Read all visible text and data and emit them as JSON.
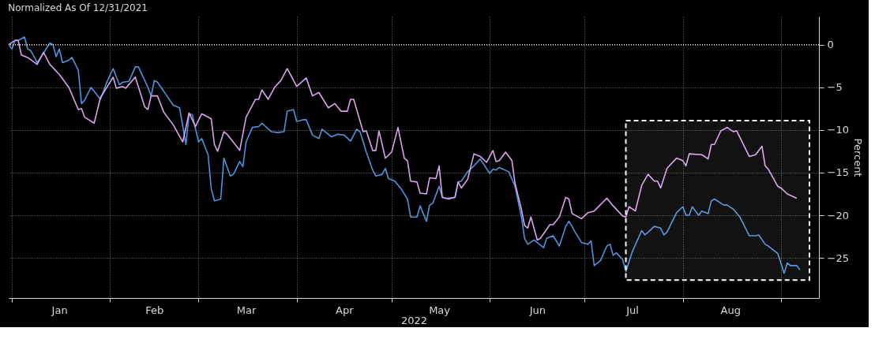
{
  "chart_data": {
    "type": "line",
    "title": "Normalized As Of 12/31/2021",
    "xlabel": "2022",
    "ylabel": "Percent",
    "xlim": [
      "2021-12-31",
      "2022-09-13"
    ],
    "xticks": [
      {
        "value": "2022-01-01",
        "label": null
      },
      {
        "value": "2022-01-16",
        "label": "Jan"
      },
      {
        "value": "2022-02-01",
        "label": null
      },
      {
        "value": "2022-02-15",
        "label": "Feb"
      },
      {
        "value": "2022-03-01",
        "label": null
      },
      {
        "value": "2022-03-16",
        "label": "Mar"
      },
      {
        "value": "2022-04-01",
        "label": null
      },
      {
        "value": "2022-04-16",
        "label": "Apr"
      },
      {
        "value": "2022-05-01",
        "label": null
      },
      {
        "value": "2022-05-16",
        "label": "May"
      },
      {
        "value": "2022-06-01",
        "label": null
      },
      {
        "value": "2022-06-16",
        "label": "Jun"
      },
      {
        "value": "2022-07-01",
        "label": null
      },
      {
        "value": "2022-07-16",
        "label": "Jul"
      },
      {
        "value": "2022-08-01",
        "label": null
      },
      {
        "value": "2022-08-16",
        "label": "Aug"
      },
      {
        "value": "2022-09-01",
        "label": null
      }
    ],
    "ylim": [
      -29.7,
      3.3
    ],
    "yticks": [
      0,
      -5,
      -10,
      -15,
      -20,
      -25
    ],
    "grid": true,
    "marker": "none",
    "line_style": "solid",
    "ref_lines": [
      {
        "axis": "y",
        "value": 0,
        "color": "#ffffff",
        "line_style": "dotted"
      }
    ],
    "bands": [
      {
        "axis": "x",
        "from": "2022-07-14",
        "to": "2022-09-10",
        "color": "#ffffff"
      }
    ],
    "series": [
      {
        "color": "#4f92dd",
        "x": [
          "2021-12-31",
          "2022-01-01",
          "2022-01-02",
          "2022-01-03",
          "2022-01-05",
          "2022-01-06",
          "2022-01-07",
          "2022-01-09",
          "2022-01-11",
          "2022-01-13",
          "2022-01-14",
          "2022-01-15",
          "2022-01-16",
          "2022-01-17",
          "2022-01-19",
          "2022-01-20",
          "2022-01-22",
          "2022-01-23",
          "2022-01-24",
          "2022-01-26",
          "2022-01-29",
          "2022-01-31",
          "2022-02-02",
          "2022-02-04",
          "2022-02-05",
          "2022-02-07",
          "2022-02-09",
          "2022-02-10",
          "2022-02-13",
          "2022-02-14",
          "2022-02-15",
          "2022-02-16",
          "2022-02-19",
          "2022-02-21",
          "2022-02-23",
          "2022-02-25",
          "2022-02-26",
          "2022-02-27",
          "2022-03-01",
          "2022-03-02",
          "2022-03-04",
          "2022-03-05",
          "2022-03-06",
          "2022-03-08",
          "2022-03-09",
          "2022-03-11",
          "2022-03-12",
          "2022-03-14",
          "2022-03-15",
          "2022-03-16",
          "2022-03-18",
          "2022-03-20",
          "2022-03-21",
          "2022-03-24",
          "2022-03-26",
          "2022-03-28",
          "2022-03-29",
          "2022-03-31",
          "2022-04-01",
          "2022-04-03",
          "2022-04-04",
          "2022-04-06",
          "2022-04-08",
          "2022-04-09",
          "2022-04-12",
          "2022-04-14",
          "2022-04-16",
          "2022-04-18",
          "2022-04-20",
          "2022-04-21",
          "2022-04-23",
          "2022-04-25",
          "2022-04-26",
          "2022-04-28",
          "2022-04-29",
          "2022-04-30",
          "2022-05-02",
          "2022-05-04",
          "2022-05-06",
          "2022-05-07",
          "2022-05-09",
          "2022-05-10",
          "2022-05-12",
          "2022-05-13",
          "2022-05-14",
          "2022-05-16",
          "2022-05-17",
          "2022-05-18",
          "2022-05-21",
          "2022-05-22",
          "2022-05-23",
          "2022-05-25",
          "2022-05-27",
          "2022-05-29",
          "2022-06-01",
          "2022-06-02",
          "2022-06-03",
          "2022-06-04",
          "2022-06-07",
          "2022-06-09",
          "2022-06-11",
          "2022-06-12",
          "2022-06-13",
          "2022-06-15",
          "2022-06-18",
          "2022-06-19",
          "2022-06-21",
          "2022-06-23",
          "2022-06-25",
          "2022-06-26",
          "2022-06-27",
          "2022-06-28",
          "2022-06-30",
          "2022-07-02",
          "2022-07-03",
          "2022-07-04",
          "2022-07-06",
          "2022-07-08",
          "2022-07-09",
          "2022-07-10",
          "2022-07-11",
          "2022-07-13",
          "2022-07-14",
          "2022-07-16",
          "2022-07-19",
          "2022-07-20",
          "2022-07-21",
          "2022-07-23",
          "2022-07-25",
          "2022-07-26",
          "2022-07-27",
          "2022-07-30",
          "2022-08-01",
          "2022-08-02",
          "2022-08-03",
          "2022-08-04",
          "2022-08-06",
          "2022-08-07",
          "2022-08-09",
          "2022-08-10",
          "2022-08-11",
          "2022-08-14",
          "2022-08-15",
          "2022-08-17",
          "2022-08-19",
          "2022-08-22",
          "2022-08-24",
          "2022-08-25",
          "2022-08-27",
          "2022-08-28",
          "2022-08-31",
          "2022-09-01",
          "2022-09-02",
          "2022-09-03",
          "2022-09-04",
          "2022-09-06",
          "2022-09-07"
        ],
        "values": [
          0,
          -0.5,
          0.5,
          0.5,
          0.9,
          -0.5,
          -0.7,
          -2.1,
          -1.0,
          0.2,
          0,
          -1.4,
          -0.5,
          -2.1,
          -1.8,
          -1.5,
          -3.0,
          -6.9,
          -6.5,
          -5.0,
          -6.4,
          -4.4,
          -2.8,
          -4.7,
          -4.4,
          -4.3,
          -2.6,
          -2.6,
          -5.0,
          -6.0,
          -4.2,
          -4.4,
          -6.0,
          -7.1,
          -7.4,
          -11.7,
          -8.1,
          -8.2,
          -11.4,
          -11.0,
          -12.9,
          -16.9,
          -18.3,
          -18.1,
          -13.3,
          -15.4,
          -15.2,
          -13.7,
          -14.3,
          -11.4,
          -9.7,
          -9.6,
          -9.2,
          -10.2,
          -10.3,
          -10.2,
          -7.8,
          -7.6,
          -9.0,
          -8.8,
          -8.8,
          -10.6,
          -11.0,
          -9.9,
          -10.8,
          -10.5,
          -10.6,
          -11.3,
          -9.9,
          -10.2,
          -12.6,
          -14.7,
          -15.4,
          -15.2,
          -14.5,
          -15.7,
          -16.0,
          -16.9,
          -18.1,
          -20.2,
          -20.2,
          -18.9,
          -20.7,
          -18.8,
          -18.6,
          -16.6,
          -17.9,
          -18.0,
          -17.9,
          -16.1,
          -16.0,
          -14.9,
          -14.2,
          -13.4,
          -15.1,
          -14.6,
          -14.7,
          -14.4,
          -14.9,
          -16.6,
          -20.2,
          -22.7,
          -23.4,
          -22.9,
          -23.8,
          -22.7,
          -22.4,
          -23.6,
          -21.3,
          -20.7,
          -21.3,
          -22.0,
          -23.2,
          -23.4,
          -23.0,
          -25.9,
          -25.3,
          -23.6,
          -23.4,
          -24.7,
          -24.4,
          -25.2,
          -26.6,
          -24.3,
          -21.8,
          -22.3,
          -22.0,
          -21.3,
          -21.5,
          -22.3,
          -22.0,
          -19.7,
          -19.0,
          -20.0,
          -20.0,
          -19.0,
          -20.0,
          -19.5,
          -19.8,
          -18.3,
          -18.1,
          -18.8,
          -18.8,
          -19.3,
          -20.2,
          -22.4,
          -22.4,
          -22.3,
          -23.4,
          -23.6,
          -24.5,
          -25.6,
          -26.8,
          -25.6,
          -25.9,
          -25.9,
          -26.4
        ]
      },
      {
        "color": "#d9a3ee",
        "x": [
          "2021-12-31",
          "2022-01-02",
          "2022-01-03",
          "2022-01-04",
          "2022-01-06",
          "2022-01-09",
          "2022-01-11",
          "2022-01-13",
          "2022-01-16",
          "2022-01-19",
          "2022-01-22",
          "2022-01-23",
          "2022-01-24",
          "2022-01-27",
          "2022-01-29",
          "2022-02-02",
          "2022-02-03",
          "2022-02-05",
          "2022-02-06",
          "2022-02-09",
          "2022-02-12",
          "2022-02-13",
          "2022-02-14",
          "2022-02-16",
          "2022-02-18",
          "2022-02-21",
          "2022-02-24",
          "2022-02-26",
          "2022-02-28",
          "2022-03-02",
          "2022-03-05",
          "2022-03-06",
          "2022-03-07",
          "2022-03-09",
          "2022-03-10",
          "2022-03-14",
          "2022-03-16",
          "2022-03-19",
          "2022-03-20",
          "2022-03-21",
          "2022-03-23",
          "2022-03-25",
          "2022-03-27",
          "2022-03-29",
          "2022-04-01",
          "2022-04-04",
          "2022-04-06",
          "2022-04-08",
          "2022-04-11",
          "2022-04-13",
          "2022-04-15",
          "2022-04-17",
          "2022-04-18",
          "2022-04-19",
          "2022-04-22",
          "2022-04-23",
          "2022-04-25",
          "2022-04-26",
          "2022-04-27",
          "2022-04-29",
          "2022-05-01",
          "2022-05-03",
          "2022-05-05",
          "2022-05-06",
          "2022-05-07",
          "2022-05-09",
          "2022-05-10",
          "2022-05-12",
          "2022-05-13",
          "2022-05-15",
          "2022-05-16",
          "2022-05-17",
          "2022-05-19",
          "2022-05-21",
          "2022-05-22",
          "2022-05-23",
          "2022-05-25",
          "2022-05-27",
          "2022-05-29",
          "2022-05-31",
          "2022-06-02",
          "2022-06-03",
          "2022-06-04",
          "2022-06-06",
          "2022-06-08",
          "2022-06-09",
          "2022-06-11",
          "2022-06-12",
          "2022-06-13",
          "2022-06-14",
          "2022-06-16",
          "2022-06-17",
          "2022-06-20",
          "2022-06-21",
          "2022-06-23",
          "2022-06-25",
          "2022-06-26",
          "2022-06-27",
          "2022-06-30",
          "2022-07-02",
          "2022-07-04",
          "2022-07-08",
          "2022-07-10",
          "2022-07-13",
          "2022-07-14",
          "2022-07-15",
          "2022-07-17",
          "2022-07-19",
          "2022-07-21",
          "2022-07-23",
          "2022-07-24",
          "2022-07-25",
          "2022-07-27",
          "2022-07-30",
          "2022-08-01",
          "2022-08-02",
          "2022-08-03",
          "2022-08-07",
          "2022-08-09",
          "2022-08-10",
          "2022-08-11",
          "2022-08-13",
          "2022-08-15",
          "2022-08-17",
          "2022-08-18",
          "2022-08-22",
          "2022-08-24",
          "2022-08-26",
          "2022-08-27",
          "2022-08-28",
          "2022-08-31",
          "2022-09-01",
          "2022-09-03",
          "2022-09-06"
        ],
        "values": [
          0,
          0.5,
          0.5,
          -1.2,
          -1.5,
          -2.3,
          -0.9,
          -2.3,
          -3.5,
          -5.0,
          -7.6,
          -7.5,
          -8.5,
          -9.2,
          -6.2,
          -3.8,
          -5.1,
          -4.9,
          -5.1,
          -3.8,
          -7.3,
          -7.6,
          -6.0,
          -6.0,
          -7.9,
          -9.4,
          -11.4,
          -8.0,
          -9.6,
          -8.1,
          -8.7,
          -11.7,
          -12.5,
          -10.2,
          -10.5,
          -12.4,
          -8.5,
          -6.4,
          -6.4,
          -5.3,
          -6.4,
          -5.0,
          -4.2,
          -2.8,
          -4.9,
          -3.9,
          -6.0,
          -5.6,
          -7.4,
          -6.9,
          -7.8,
          -7.8,
          -6.4,
          -6.4,
          -10.2,
          -10.1,
          -12.4,
          -12.4,
          -10.1,
          -13.3,
          -12.6,
          -9.7,
          -13.3,
          -13.6,
          -16.0,
          -16.1,
          -17.4,
          -17.5,
          -15.6,
          -15.7,
          -14.2,
          -17.9,
          -18.1,
          -17.9,
          -16.1,
          -16.8,
          -15.8,
          -12.8,
          -13.1,
          -13.8,
          -12.4,
          -13.7,
          -13.6,
          -12.6,
          -13.6,
          -16.3,
          -19.3,
          -21.2,
          -21.5,
          -20.2,
          -22.9,
          -22.7,
          -21.1,
          -21.1,
          -20.2,
          -17.9,
          -18.1,
          -19.8,
          -20.4,
          -19.7,
          -19.5,
          -18.0,
          -18.9,
          -20.1,
          -20.2,
          -19.0,
          -19.5,
          -16.5,
          -15.2,
          -16.0,
          -16.0,
          -16.8,
          -14.5,
          -13.3,
          -13.6,
          -14.2,
          -12.8,
          -12.9,
          -13.4,
          -11.7,
          -11.7,
          -10.1,
          -9.7,
          -10.2,
          -10.1,
          -13.1,
          -12.9,
          -11.9,
          -14.2,
          -14.6,
          -16.6,
          -16.8,
          -17.5,
          -18.0
        ]
      }
    ]
  }
}
